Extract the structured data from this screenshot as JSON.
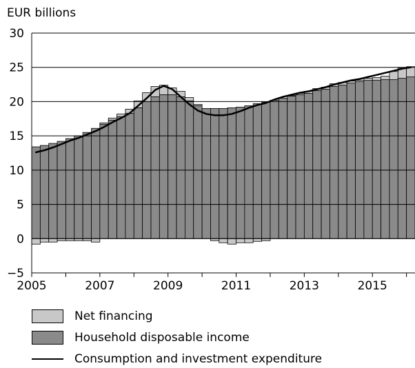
{
  "chart_data": {
    "type": "bar",
    "ylabel": "EUR billions",
    "ylim": [
      -5,
      30
    ],
    "yticks": [
      -5,
      0,
      5,
      10,
      15,
      20,
      25,
      30
    ],
    "xticks": [
      "2005",
      "2007",
      "2009",
      "2011",
      "2013",
      "2015"
    ],
    "grid": true,
    "x": [
      "2005Q1",
      "2005Q2",
      "2005Q3",
      "2005Q4",
      "2006Q1",
      "2006Q2",
      "2006Q3",
      "2006Q4",
      "2007Q1",
      "2007Q2",
      "2007Q3",
      "2007Q4",
      "2008Q1",
      "2008Q2",
      "2008Q3",
      "2008Q4",
      "2009Q1",
      "2009Q2",
      "2009Q3",
      "2009Q4",
      "2010Q1",
      "2010Q2",
      "2010Q3",
      "2010Q4",
      "2011Q1",
      "2011Q2",
      "2011Q3",
      "2011Q4",
      "2012Q1",
      "2012Q2",
      "2012Q3",
      "2012Q4",
      "2013Q1",
      "2013Q2",
      "2013Q3",
      "2013Q4",
      "2014Q1",
      "2014Q2",
      "2014Q3",
      "2014Q4",
      "2015Q1",
      "2015Q2",
      "2015Q3",
      "2015Q4",
      "2016Q1"
    ],
    "series": [
      {
        "name": "Net financing",
        "kind": "bar",
        "values": [
          -0.8,
          -0.5,
          -0.5,
          -0.3,
          -0.3,
          -0.3,
          -0.3,
          -0.5,
          0.2,
          0.3,
          0.4,
          0.6,
          1.0,
          1.3,
          1.5,
          1.4,
          1.0,
          0.8,
          0.5,
          0.2,
          0,
          -0.3,
          -0.6,
          -0.8,
          -0.6,
          -0.6,
          -0.4,
          -0.3,
          0,
          0,
          0.1,
          0.2,
          0.3,
          0.3,
          0.3,
          0.4,
          0.4,
          0.3,
          0.2,
          0.3,
          0.4,
          0.5,
          1.2,
          1.5,
          1.5
        ]
      },
      {
        "name": "Household disposable income",
        "kind": "bar",
        "values": [
          13.4,
          13.6,
          13.9,
          14.2,
          14.6,
          15.0,
          15.5,
          16.1,
          16.7,
          17.3,
          17.8,
          18.3,
          19.1,
          20.0,
          20.7,
          21.0,
          21.0,
          20.7,
          20.1,
          19.4,
          19.0,
          19.0,
          19.0,
          19.1,
          19.2,
          19.4,
          19.7,
          19.9,
          20.2,
          20.5,
          20.8,
          21.0,
          21.2,
          21.6,
          21.8,
          22.2,
          22.4,
          22.7,
          22.9,
          23.1,
          23.1,
          23.2,
          23.2,
          23.4,
          23.6
        ]
      },
      {
        "name": "Consumption and investment expenditure",
        "kind": "line",
        "values": [
          12.6,
          12.9,
          13.3,
          13.8,
          14.3,
          14.7,
          15.2,
          15.7,
          16.3,
          17.0,
          17.6,
          18.3,
          19.4,
          20.5,
          21.7,
          22.3,
          21.8,
          20.7,
          19.6,
          18.7,
          18.2,
          18.0,
          18.0,
          18.2,
          18.6,
          19.1,
          19.5,
          19.8,
          20.3,
          20.7,
          21.0,
          21.3,
          21.5,
          21.8,
          22.1,
          22.5,
          22.8,
          23.1,
          23.3,
          23.6,
          23.9,
          24.2,
          24.5,
          24.8,
          25.0
        ]
      }
    ],
    "colors": {
      "net_financing": "#c8c8c8",
      "household_income": "#8a8a8a",
      "line": "#000000",
      "grid": "#000000",
      "plot_background": "#ffffff"
    },
    "legend": {
      "placement": "bottom",
      "items": [
        {
          "label": "Net financing",
          "icon": "light-gray-box"
        },
        {
          "label": "Household disposable income",
          "icon": "dark-gray-box"
        },
        {
          "label": "Consumption and investment expenditure",
          "icon": "black-line"
        }
      ]
    }
  }
}
